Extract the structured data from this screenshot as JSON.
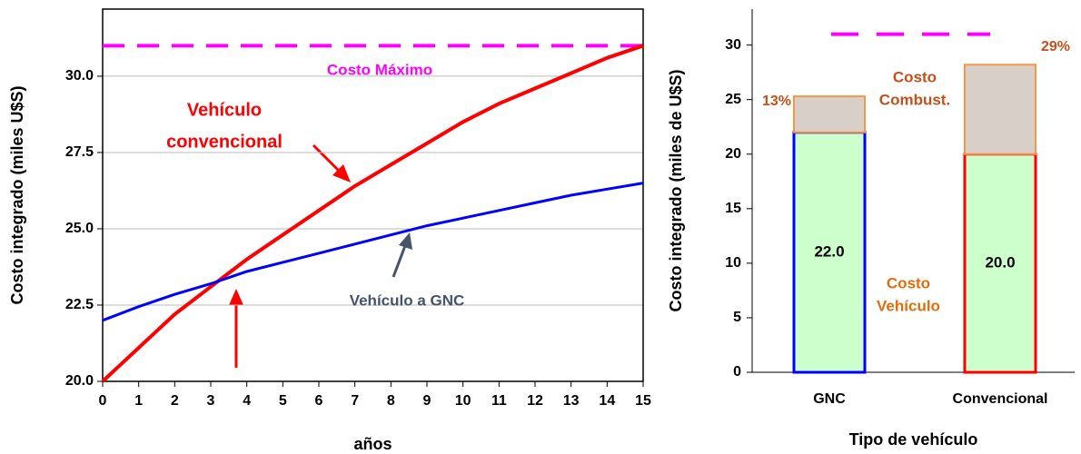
{
  "chart_data": [
    {
      "type": "line",
      "xlabel": "años",
      "ylabel": "Costo integrado (miles U$S)",
      "x": [
        0,
        1,
        2,
        3,
        4,
        5,
        6,
        7,
        8,
        9,
        10,
        11,
        12,
        13,
        14,
        15
      ],
      "xlim": [
        0,
        15
      ],
      "xticks": [
        0,
        1,
        2,
        3,
        4,
        5,
        6,
        7,
        8,
        9,
        10,
        11,
        12,
        13,
        14,
        15
      ],
      "ylim": [
        20,
        32.2
      ],
      "yticks": [
        {
          "value": 20,
          "label": "20.0"
        },
        {
          "value": 22.5,
          "label": "22.5"
        },
        {
          "value": 25,
          "label": "25.0"
        },
        {
          "value": 27.5,
          "label": "27.5"
        },
        {
          "value": 30,
          "label": "30.0"
        }
      ],
      "grid": true,
      "series": [
        {
          "color": "#ff0000",
          "values": [
            20,
            21.1,
            22.2,
            23.1,
            24.0,
            24.8,
            25.6,
            26.4,
            27.1,
            27.8,
            28.5,
            29.1,
            29.6,
            30.1,
            30.6,
            31.0
          ]
        },
        {
          "color": "#0000ff",
          "values": [
            22.0,
            22.45,
            22.85,
            23.2,
            23.6,
            23.9,
            24.2,
            24.5,
            24.8,
            25.1,
            25.35,
            25.6,
            25.85,
            26.1,
            26.3,
            26.5
          ]
        }
      ],
      "reference": {
        "value": 31,
        "label": "Costo Máximo",
        "color": "#ff00ff"
      },
      "annotations": [
        {
          "lines": [
            "Vehículo",
            "convencional"
          ],
          "color": "#ff0000"
        },
        {
          "lines": [
            "Vehículo a GNC"
          ],
          "color": "#44546a"
        }
      ]
    },
    {
      "type": "stacked-bar",
      "xlabel": "Tipo de vehículo",
      "ylabel": "Costo integrado (miles de U$S)",
      "categories": [
        "GNC",
        "Convencional"
      ],
      "ylim": [
        0,
        33.3
      ],
      "yticks": [
        0,
        5,
        10,
        15,
        20,
        25,
        30
      ],
      "series": [
        {
          "color": "#ccffcc",
          "edge_colors": [
            "#0000ff",
            "#ff0000"
          ],
          "values": [
            22.0,
            20.0
          ],
          "value_labels": [
            "22.0",
            "20.0"
          ]
        },
        {
          "color": "#d8cfc9",
          "edge_color": "#f79646",
          "values": [
            3.3,
            8.2
          ],
          "share_labels": [
            "13%",
            "29%"
          ]
        }
      ],
      "reference": {
        "value": 31,
        "color": "#ff00ff"
      },
      "annotations": [
        {
          "lines": [
            "Costo",
            "Combust."
          ],
          "color": "#c5501a"
        },
        {
          "lines": [
            "Costo",
            "Vehículo"
          ],
          "color": "#e46c0a"
        }
      ]
    }
  ]
}
